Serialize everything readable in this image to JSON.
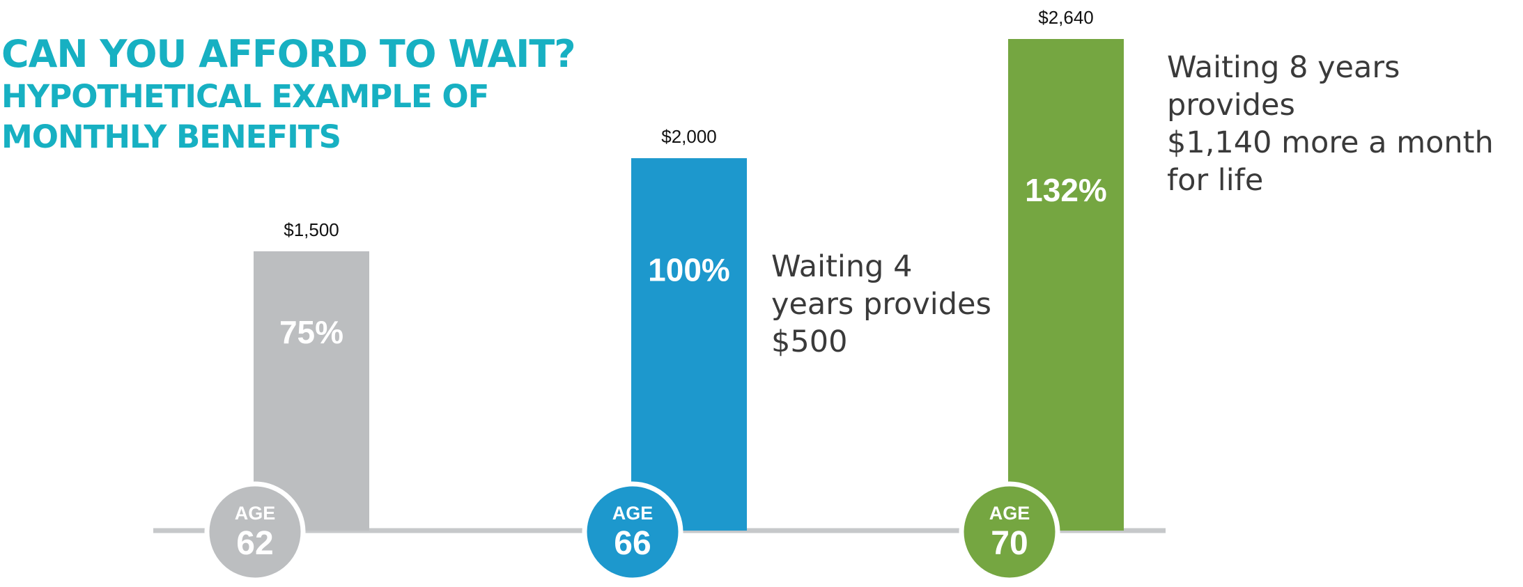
{
  "title": {
    "line1": "CAN YOU AFFORD TO WAIT?",
    "line2": "HYPOTHETICAL EXAMPLE OF",
    "line3": "MONTHLY BENEFITS"
  },
  "colors": {
    "title": "#17b0c2",
    "baseline": "#c6c8ca",
    "age62": "#bcbec0",
    "age66": "#1d98cd",
    "age70": "#75a641"
  },
  "chart_data": {
    "type": "bar",
    "title": "CAN YOU AFFORD TO WAIT? HYPOTHETICAL EXAMPLE OF MONTHLY BENEFITS",
    "categories": [
      "AGE 62",
      "AGE 66",
      "AGE 70"
    ],
    "age_prefix": "AGE",
    "ages": [
      "62",
      "66",
      "70"
    ],
    "values": [
      1500,
      2000,
      2640
    ],
    "value_labels": [
      "$1,500",
      "$2,000",
      "$2,640"
    ],
    "percent_labels": [
      "75%",
      "100%",
      "132%"
    ],
    "ylim": [
      0,
      2640
    ],
    "grid": false,
    "xlabel": "",
    "ylabel": "",
    "annotations": [
      {
        "category": "AGE 66",
        "text": "Waiting 4\nyears provides\n$500"
      },
      {
        "category": "AGE 70",
        "text": "Waiting 8 years provides\n$1,140 more a month\nfor life"
      }
    ]
  }
}
